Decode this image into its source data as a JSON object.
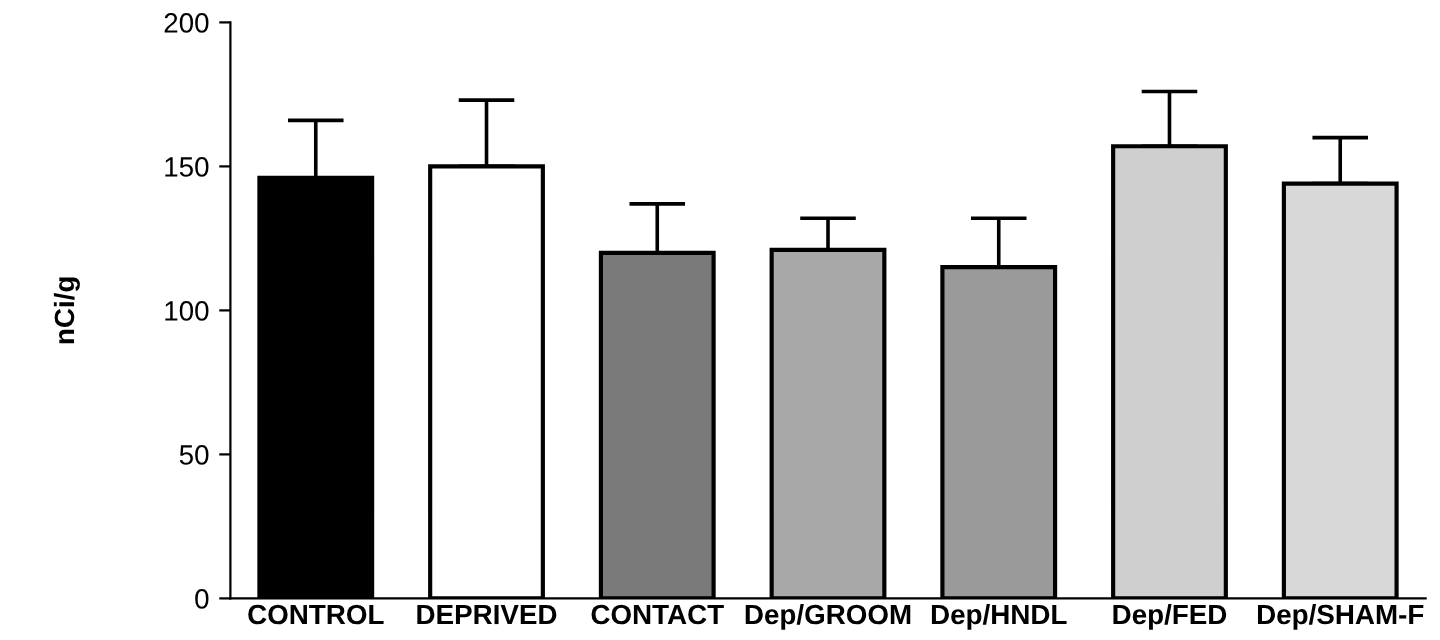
{
  "chart_data": {
    "type": "bar",
    "ylabel": "nCi/g",
    "categories": [
      "CONTROL",
      "DEPRIVED",
      "CONTACT",
      "Dep/GROOM",
      "Dep/HNDL",
      "Dep/FED",
      "Dep/SHAM-F"
    ],
    "values": [
      146,
      150,
      120,
      121,
      115,
      157,
      144
    ],
    "errors": [
      20,
      23,
      17,
      11,
      17,
      19,
      16
    ],
    "colors": [
      "#000000",
      "#ffffff",
      "#7a7a7a",
      "#a8a8a8",
      "#9a9a9a",
      "#cfcfcf",
      "#d8d8d8"
    ],
    "ylim": [
      0,
      200
    ],
    "yticks": [
      0,
      50,
      100,
      150,
      200
    ],
    "grid": false,
    "legend": false
  }
}
